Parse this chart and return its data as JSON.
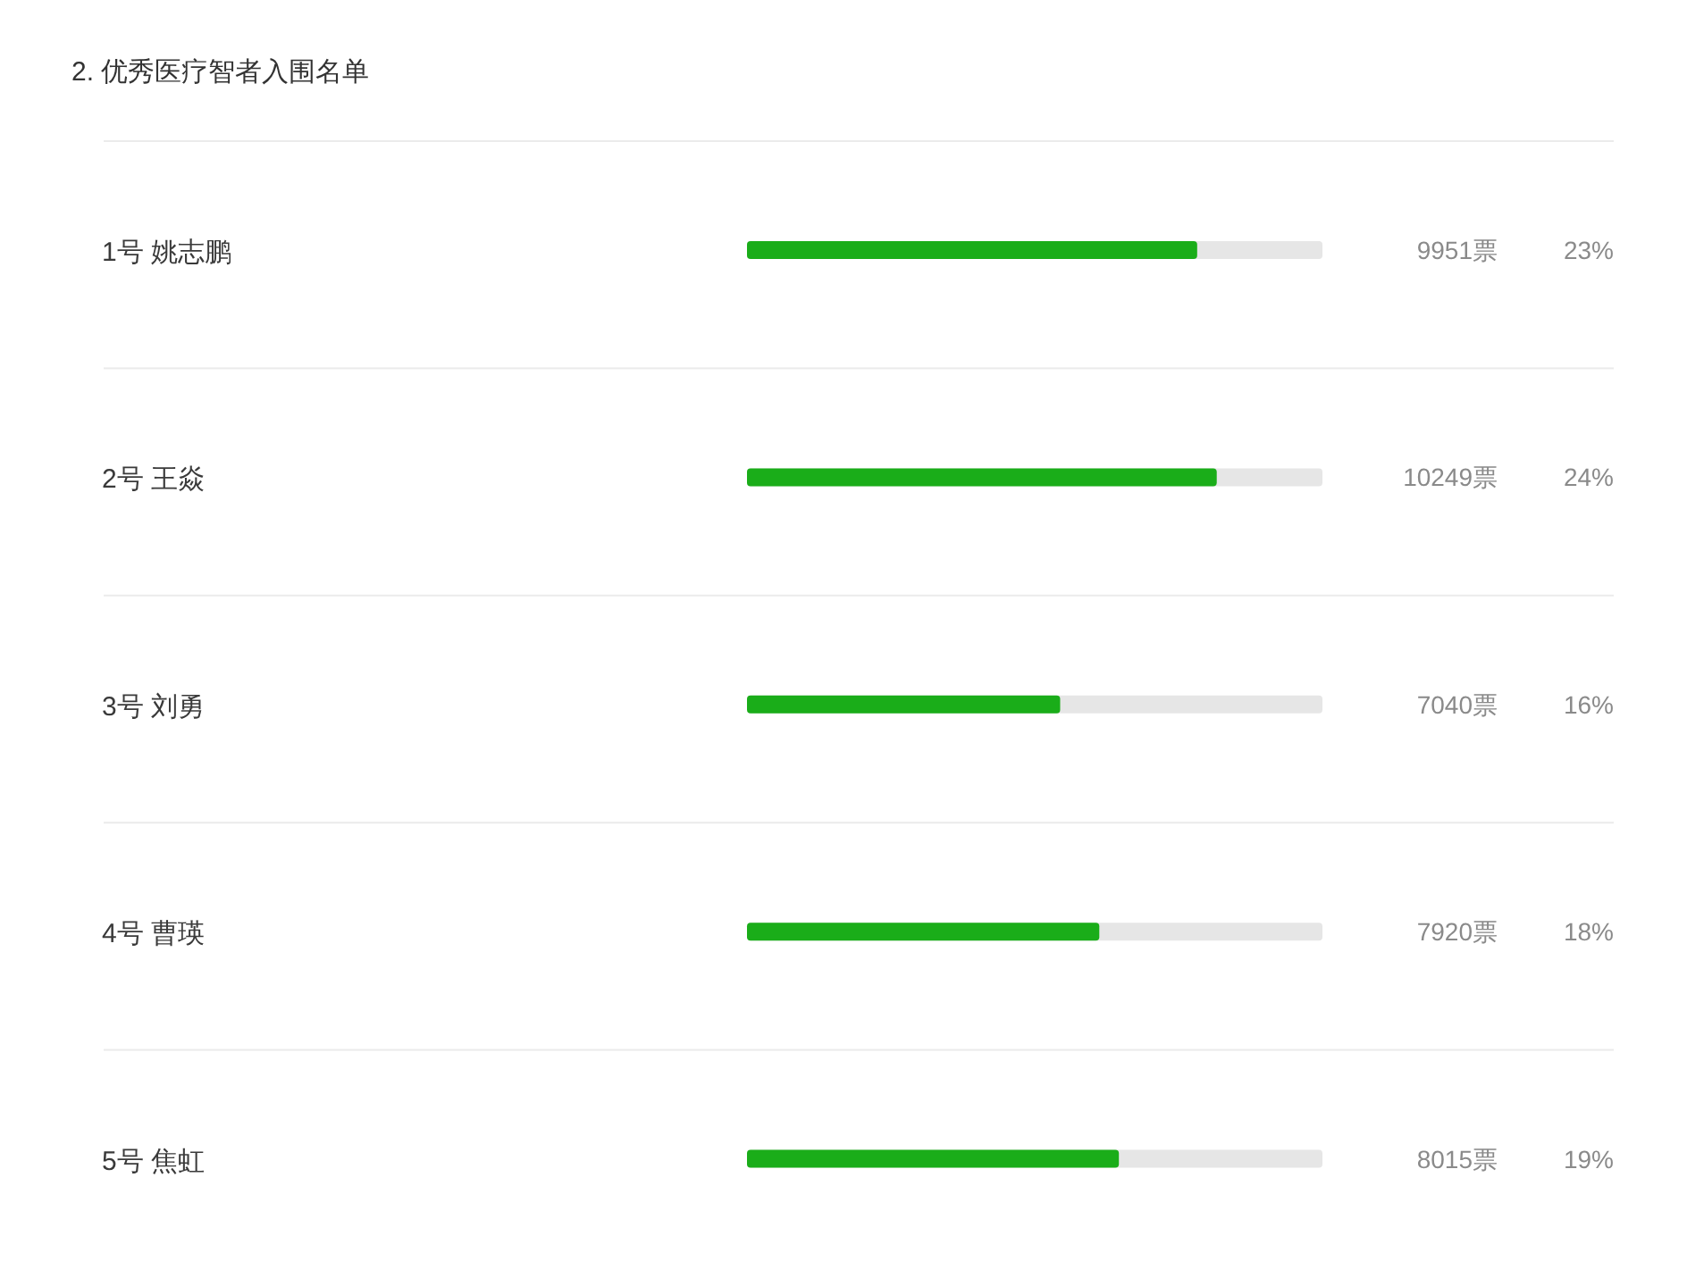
{
  "chart_data": {
    "type": "bar",
    "title": "2. 优秀医疗智者入围名单",
    "orientation": "horizontal",
    "categories": [
      "1号 姚志鹏",
      "2号 王焱",
      "3号 刘勇",
      "4号 曹瑛",
      "5号 焦虹"
    ],
    "values": [
      23,
      24,
      16,
      18,
      19
    ],
    "value_labels": [
      "23%",
      "24%",
      "16%",
      "18%",
      "19%"
    ],
    "annotations": [
      "9951票",
      "10249票",
      "7040票",
      "7920票",
      "8015票"
    ],
    "color": "#1aad19",
    "xlim": [
      0,
      29.4
    ],
    "tick_labels": "y"
  }
}
